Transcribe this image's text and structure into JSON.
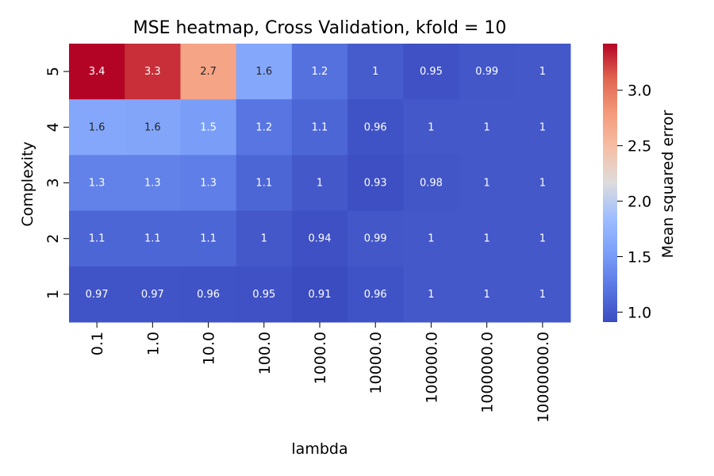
{
  "chart_data": {
    "type": "heatmap",
    "title": "MSE heatmap, Cross Validation, kfold = 10",
    "xlabel": "lambda",
    "ylabel": "Complexity",
    "x_categories": [
      "0.1",
      "1.0",
      "10.0",
      "100.0",
      "1000.0",
      "10000.0",
      "100000.0",
      "1000000.0",
      "10000000.0"
    ],
    "y_categories": [
      "5",
      "4",
      "3",
      "2",
      "1"
    ],
    "values": [
      [
        3.42,
        3.28,
        2.71,
        1.62,
        1.18,
        1.02,
        0.95,
        0.99,
        1.0
      ],
      [
        1.62,
        1.6,
        1.53,
        1.21,
        1.1,
        0.96,
        1.0,
        1.0,
        1.0
      ],
      [
        1.31,
        1.31,
        1.28,
        1.1,
        1.0,
        0.93,
        0.98,
        1.0,
        1.0
      ],
      [
        1.1,
        1.1,
        1.1,
        1.0,
        0.94,
        0.99,
        1.0,
        1.0,
        1.0
      ],
      [
        0.97,
        0.97,
        0.96,
        0.95,
        0.91,
        0.96,
        1.0,
        1.0,
        1.0
      ]
    ],
    "labels": [
      [
        "3.4",
        "3.3",
        "2.7",
        "1.6",
        "1.2",
        "1",
        "0.95",
        "0.99",
        "1"
      ],
      [
        "1.6",
        "1.6",
        "1.5",
        "1.2",
        "1.1",
        "0.96",
        "1",
        "1",
        "1"
      ],
      [
        "1.3",
        "1.3",
        "1.3",
        "1.1",
        "1",
        "0.93",
        "0.98",
        "1",
        "1"
      ],
      [
        "1.1",
        "1.1",
        "1.1",
        "1",
        "0.94",
        "0.99",
        "1",
        "1",
        "1"
      ],
      [
        "0.97",
        "0.97",
        "0.96",
        "0.95",
        "0.91",
        "0.96",
        "1",
        "1",
        "1"
      ]
    ],
    "colormap": "coolwarm",
    "vmin": 0.91,
    "vmax": 3.42,
    "colorbar": {
      "label": "Mean squared error",
      "ticks": [
        1.0,
        1.5,
        2.0,
        2.5,
        3.0
      ],
      "tick_labels": [
        "1.0",
        "1.5",
        "2.0",
        "2.5",
        "3.0"
      ]
    }
  }
}
